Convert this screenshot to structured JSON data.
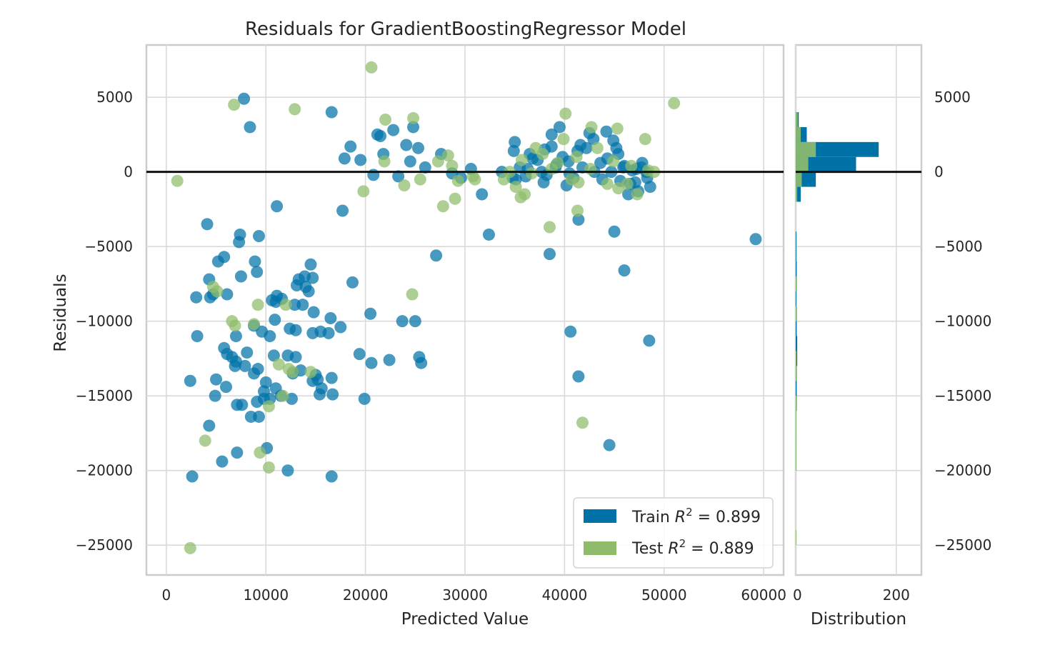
{
  "chart_data": {
    "type": "scatter",
    "title": "Residuals for GradientBoostingRegressor Model",
    "xlabel": "Predicted Value",
    "ylabel": "Residuals",
    "hist_xlabel": "Distribution",
    "xlim": [
      -2000,
      62000
    ],
    "ylim": [
      -27000,
      8500
    ],
    "x_ticks": [
      "0",
      "10000",
      "20000",
      "30000",
      "40000",
      "50000",
      "60000"
    ],
    "x_tick_values": [
      0,
      10000,
      20000,
      30000,
      40000,
      50000,
      60000
    ],
    "y_ticks": [
      "5000",
      "0",
      "−5000",
      "−10000",
      "−15000",
      "−20000",
      "−25000"
    ],
    "y_tick_values": [
      5000,
      0,
      -5000,
      -10000,
      -15000,
      -20000,
      -25000
    ],
    "hist_xlim": [
      0,
      250
    ],
    "hist_ticks": [
      "0",
      "200"
    ],
    "hist_tick_values": [
      0,
      200
    ],
    "grid": true,
    "legend_position": "bottom-right",
    "colors": {
      "train": "#0072a8",
      "test": "#8fbc6a",
      "zero_line": "#111111"
    },
    "legend": [
      {
        "series": "train",
        "label_prefix": "Train ",
        "label_r2": "R",
        "label_sup": "2",
        "label_value": " = 0.899"
      },
      {
        "series": "test",
        "label_prefix": "Test ",
        "label_r2": "R",
        "label_sup": "2",
        "label_value": " = 0.889"
      }
    ],
    "series": [
      {
        "key": "train",
        "points": [
          [
            2600,
            -20400
          ],
          [
            2400,
            -14000
          ],
          [
            3100,
            -11000
          ],
          [
            3000,
            -8400
          ],
          [
            4100,
            -3500
          ],
          [
            4300,
            -7200
          ],
          [
            4400,
            -8400
          ],
          [
            4300,
            -17000
          ],
          [
            4700,
            -8200
          ],
          [
            4900,
            -15000
          ],
          [
            5000,
            -13900
          ],
          [
            5200,
            -6000
          ],
          [
            5600,
            -19400
          ],
          [
            5800,
            -5700
          ],
          [
            5800,
            -11800
          ],
          [
            6000,
            -14400
          ],
          [
            6100,
            -12200
          ],
          [
            6100,
            -8200
          ],
          [
            6600,
            -12400
          ],
          [
            6900,
            -13000
          ],
          [
            7000,
            -11000
          ],
          [
            7000,
            -12700
          ],
          [
            7100,
            -15600
          ],
          [
            7100,
            -18800
          ],
          [
            7300,
            -4700
          ],
          [
            7400,
            -4200
          ],
          [
            7500,
            -7000
          ],
          [
            7600,
            -15600
          ],
          [
            7900,
            -13000
          ],
          [
            8100,
            -12100
          ],
          [
            8500,
            -16400
          ],
          [
            8800,
            -13500
          ],
          [
            8900,
            -6000
          ],
          [
            8800,
            -10300
          ],
          [
            9100,
            -6700
          ],
          [
            9100,
            -15400
          ],
          [
            9200,
            -13200
          ],
          [
            9300,
            -16400
          ],
          [
            9300,
            -4300
          ],
          [
            9600,
            -10700
          ],
          [
            9800,
            -14700
          ],
          [
            9800,
            -15200
          ],
          [
            10000,
            -14100
          ],
          [
            10100,
            -18500
          ],
          [
            10400,
            -15200
          ],
          [
            10400,
            -11000
          ],
          [
            10600,
            -8600
          ],
          [
            10800,
            -12300
          ],
          [
            10900,
            -9900
          ],
          [
            11000,
            -14500
          ],
          [
            11000,
            -8700
          ],
          [
            11100,
            -8300
          ],
          [
            11500,
            -15000
          ],
          [
            11600,
            -8500
          ],
          [
            12200,
            -20000
          ],
          [
            12200,
            -12300
          ],
          [
            12400,
            -10500
          ],
          [
            12600,
            -15200
          ],
          [
            12700,
            -13500
          ],
          [
            12900,
            -8900
          ],
          [
            13000,
            -12400
          ],
          [
            13000,
            -10600
          ],
          [
            13100,
            -7600
          ],
          [
            13300,
            -7200
          ],
          [
            13500,
            -13300
          ],
          [
            13700,
            -8900
          ],
          [
            13900,
            -7000
          ],
          [
            14000,
            -7700
          ],
          [
            14300,
            -8000
          ],
          [
            14500,
            -6200
          ],
          [
            14700,
            -14000
          ],
          [
            14700,
            -7100
          ],
          [
            14800,
            -9400
          ],
          [
            14700,
            -10800
          ],
          [
            15000,
            -13600
          ],
          [
            15200,
            -13900
          ],
          [
            15400,
            -14900
          ],
          [
            15500,
            -10700
          ],
          [
            15600,
            -14500
          ],
          [
            16300,
            -10800
          ],
          [
            16500,
            -9800
          ],
          [
            16600,
            -20400
          ],
          [
            16600,
            -13800
          ],
          [
            16700,
            -14900
          ],
          [
            17500,
            -10400
          ],
          [
            17700,
            -2600
          ],
          [
            18700,
            -7400
          ],
          [
            19400,
            -12200
          ],
          [
            19900,
            -15200
          ],
          [
            20500,
            -9500
          ],
          [
            20600,
            -12800
          ],
          [
            22400,
            -12600
          ],
          [
            23700,
            -10000
          ],
          [
            25000,
            -10000
          ],
          [
            25400,
            -12400
          ],
          [
            25600,
            -12800
          ],
          [
            27100,
            -5600
          ],
          [
            32400,
            -4200
          ],
          [
            38500,
            -5500
          ],
          [
            40600,
            -10700
          ],
          [
            41400,
            -3200
          ],
          [
            41400,
            -13700
          ],
          [
            44500,
            -18300
          ],
          [
            45000,
            -4000
          ],
          [
            46000,
            -6600
          ],
          [
            48500,
            -11300
          ],
          [
            59200,
            -4500
          ],
          [
            11100,
            -2300
          ],
          [
            7800,
            4900
          ],
          [
            8400,
            3000
          ],
          [
            16600,
            4000
          ],
          [
            21200,
            2500
          ],
          [
            22800,
            2800
          ],
          [
            24100,
            1800
          ],
          [
            25300,
            1600
          ],
          [
            27600,
            1200
          ],
          [
            30600,
            200
          ],
          [
            31700,
            -1500
          ],
          [
            33700,
            0
          ],
          [
            35100,
            -500
          ],
          [
            36300,
            200
          ],
          [
            37300,
            800
          ],
          [
            38000,
            1500
          ],
          [
            38700,
            2500
          ],
          [
            39500,
            3000
          ],
          [
            39800,
            1000
          ],
          [
            40400,
            700
          ],
          [
            41300,
            1400
          ],
          [
            42200,
            1600
          ],
          [
            42900,
            2200
          ],
          [
            43600,
            600
          ],
          [
            44300,
            900
          ],
          [
            44900,
            2100
          ],
          [
            45400,
            1200
          ],
          [
            46000,
            400
          ],
          [
            46600,
            -800
          ],
          [
            47200,
            200
          ],
          [
            47800,
            600
          ],
          [
            48300,
            -400
          ],
          [
            38200,
            -200
          ],
          [
            40500,
            -100
          ],
          [
            43000,
            0
          ],
          [
            46800,
            100
          ],
          [
            35000,
            2000
          ],
          [
            36500,
            1200
          ],
          [
            37700,
            0
          ],
          [
            39200,
            500
          ],
          [
            41600,
            1800
          ],
          [
            44200,
            2700
          ],
          [
            45600,
            -600
          ],
          [
            47400,
            -1300
          ],
          [
            48200,
            0
          ],
          [
            34900,
            1400
          ],
          [
            36100,
            -300
          ],
          [
            38700,
            1700
          ],
          [
            40900,
            -400
          ],
          [
            42500,
            2600
          ],
          [
            45200,
            1600
          ],
          [
            47100,
            -700
          ],
          [
            34800,
            -400
          ],
          [
            35500,
            300
          ],
          [
            36800,
            900
          ],
          [
            37900,
            -700
          ],
          [
            39100,
            300
          ],
          [
            40200,
            -900
          ],
          [
            41800,
            300
          ],
          [
            43800,
            -500
          ],
          [
            44700,
            0
          ],
          [
            45900,
            300
          ],
          [
            46400,
            -1500
          ],
          [
            47700,
            300
          ],
          [
            48600,
            -1000
          ],
          [
            21800,
            1200
          ],
          [
            24500,
            700
          ],
          [
            19500,
            800
          ],
          [
            18500,
            1700
          ],
          [
            17900,
            900
          ],
          [
            20800,
            -200
          ],
          [
            23300,
            -300
          ],
          [
            26000,
            300
          ],
          [
            28700,
            -100
          ],
          [
            29600,
            -400
          ],
          [
            21500,
            2400
          ],
          [
            24800,
            3000
          ]
        ]
      },
      {
        "key": "test",
        "points": [
          [
            2400,
            -25200
          ],
          [
            3900,
            -18000
          ],
          [
            4700,
            -7700
          ],
          [
            5100,
            -8000
          ],
          [
            6600,
            -10000
          ],
          [
            6900,
            -10300
          ],
          [
            8800,
            -10200
          ],
          [
            9200,
            -8900
          ],
          [
            9400,
            -18800
          ],
          [
            10300,
            -19800
          ],
          [
            10300,
            -15700
          ],
          [
            11300,
            -12900
          ],
          [
            11700,
            -15000
          ],
          [
            12000,
            -8900
          ],
          [
            12300,
            -13200
          ],
          [
            12700,
            -13400
          ],
          [
            14500,
            -13400
          ],
          [
            24700,
            -8200
          ],
          [
            27800,
            -2300
          ],
          [
            38500,
            -3700
          ],
          [
            41300,
            -2600
          ],
          [
            41800,
            -16800
          ],
          [
            1100,
            -600
          ],
          [
            6800,
            4500
          ],
          [
            12900,
            4200
          ],
          [
            20600,
            7000
          ],
          [
            22000,
            3500
          ],
          [
            24800,
            3600
          ],
          [
            29000,
            -1800
          ],
          [
            40100,
            3900
          ],
          [
            42700,
            3000
          ],
          [
            45300,
            2900
          ],
          [
            48100,
            2200
          ],
          [
            51000,
            4600
          ],
          [
            19800,
            -1300
          ],
          [
            21900,
            700
          ],
          [
            23900,
            -900
          ],
          [
            25500,
            -500
          ],
          [
            27300,
            700
          ],
          [
            28300,
            1100
          ],
          [
            29300,
            -600
          ],
          [
            30800,
            -300
          ],
          [
            34500,
            0
          ],
          [
            35700,
            800
          ],
          [
            36700,
            -100
          ],
          [
            37800,
            1200
          ],
          [
            39300,
            600
          ],
          [
            40700,
            -500
          ],
          [
            41400,
            -700
          ],
          [
            42600,
            200
          ],
          [
            43300,
            1600
          ],
          [
            44300,
            -800
          ],
          [
            45400,
            -1100
          ],
          [
            46300,
            -800
          ],
          [
            47300,
            -1500
          ],
          [
            48400,
            100
          ],
          [
            49000,
            0
          ],
          [
            36000,
            -1500
          ],
          [
            38700,
            200
          ],
          [
            41200,
            1000
          ],
          [
            44900,
            700
          ],
          [
            35100,
            -1000
          ],
          [
            39900,
            2200
          ],
          [
            35600,
            -1700
          ],
          [
            33900,
            -500
          ],
          [
            37100,
            1600
          ],
          [
            46700,
            400
          ],
          [
            28700,
            400
          ],
          [
            31000,
            -500
          ]
        ]
      }
    ],
    "histogram": {
      "bin_width": 1000,
      "train": [
        [
          3000,
          6
        ],
        [
          2000,
          22
        ],
        [
          1000,
          165
        ],
        [
          0,
          120
        ],
        [
          -1000,
          40
        ],
        [
          -2000,
          10
        ],
        [
          -5000,
          1
        ],
        [
          -6000,
          1
        ],
        [
          -7000,
          2
        ],
        [
          -8000,
          2
        ],
        [
          -9000,
          1
        ],
        [
          -10000,
          2
        ],
        [
          -11000,
          2
        ],
        [
          -12000,
          3
        ],
        [
          -13000,
          3
        ],
        [
          -14000,
          2
        ],
        [
          -15000,
          2
        ],
        [
          -16000,
          2
        ],
        [
          -17000,
          1
        ],
        [
          -18000,
          1
        ],
        [
          -19000,
          1
        ],
        [
          -20000,
          1
        ]
      ],
      "test": [
        [
          3000,
          4
        ],
        [
          2000,
          10
        ],
        [
          1000,
          40
        ],
        [
          0,
          25
        ],
        [
          -1000,
          12
        ],
        [
          -2000,
          3
        ],
        [
          -8000,
          1
        ],
        [
          -10000,
          1
        ],
        [
          -13000,
          1
        ],
        [
          -14000,
          1
        ],
        [
          -16000,
          1
        ],
        [
          -17000,
          1
        ],
        [
          -18000,
          1
        ],
        [
          -19000,
          1
        ],
        [
          -20000,
          1
        ],
        [
          -25000,
          1
        ]
      ]
    }
  }
}
